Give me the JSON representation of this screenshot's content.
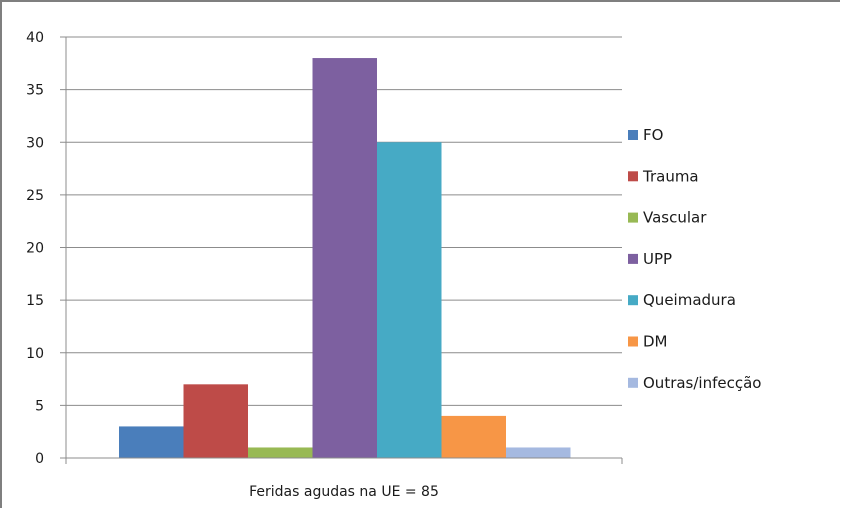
{
  "chart_data": {
    "type": "bar",
    "categories": [
      "Feridas agudas na UE = 85"
    ],
    "series": [
      {
        "name": "FO",
        "values": [
          3
        ],
        "color": "#4a7ebb"
      },
      {
        "name": "Trauma",
        "values": [
          7
        ],
        "color": "#be4b48"
      },
      {
        "name": "Vascular",
        "values": [
          1
        ],
        "color": "#98b954"
      },
      {
        "name": "UPP",
        "values": [
          38
        ],
        "color": "#7d60a0"
      },
      {
        "name": "Queimadura",
        "values": [
          30
        ],
        "color": "#46aac5"
      },
      {
        "name": "DM",
        "values": [
          4
        ],
        "color": "#f79646"
      },
      {
        "name": "Outras/infecção",
        "values": [
          1
        ],
        "color": "#a5b9e0"
      }
    ],
    "title": "",
    "xlabel": "",
    "ylabel": "",
    "ylim": [
      0,
      40
    ],
    "yticks": [
      "0",
      "5",
      "10",
      "15",
      "20",
      "25",
      "30",
      "35",
      "40"
    ],
    "grid": true,
    "legend": "right"
  }
}
